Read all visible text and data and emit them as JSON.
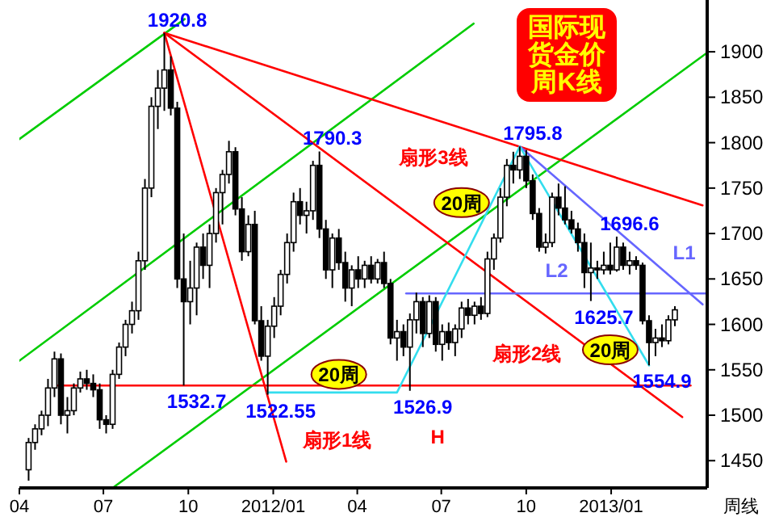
{
  "chart_data": {
    "type": "candlestick",
    "title": "国际现货金价周K线",
    "xlabel": "周线",
    "xlim": [
      "2011-04-01",
      "2013-04-15"
    ],
    "ylim": [
      1420,
      1957
    ],
    "yticks": [
      1450,
      1500,
      1550,
      1600,
      1650,
      1700,
      1750,
      1800,
      1850,
      1900
    ],
    "xticks": [
      {
        "value": "2011-04-01",
        "label": "04"
      },
      {
        "value": "2011-07-01",
        "label": "07"
      },
      {
        "value": "2011-10-01",
        "label": "10"
      },
      {
        "value": "2012-01-01",
        "label": "2012/01"
      },
      {
        "value": "2012-04-01",
        "label": "04"
      },
      {
        "value": "2012-07-01",
        "label": "07"
      },
      {
        "value": "2012-10-01",
        "label": "10"
      },
      {
        "value": "2013-01-01",
        "label": "2013/01"
      }
    ],
    "x": [
      "2011-04-11",
      "2011-04-18",
      "2011-04-25",
      "2011-05-02",
      "2011-05-09",
      "2011-05-16",
      "2011-05-23",
      "2011-05-30",
      "2011-06-06",
      "2011-06-13",
      "2011-06-20",
      "2011-06-27",
      "2011-07-04",
      "2011-07-11",
      "2011-07-18",
      "2011-07-25",
      "2011-08-01",
      "2011-08-08",
      "2011-08-15",
      "2011-08-22",
      "2011-08-29",
      "2011-09-05",
      "2011-09-12",
      "2011-09-19",
      "2011-09-26",
      "2011-10-03",
      "2011-10-10",
      "2011-10-17",
      "2011-10-24",
      "2011-10-31",
      "2011-11-07",
      "2011-11-14",
      "2011-11-21",
      "2011-11-28",
      "2011-12-05",
      "2011-12-12",
      "2011-12-19",
      "2011-12-26",
      "2012-01-02",
      "2012-01-09",
      "2012-01-16",
      "2012-01-23",
      "2012-01-30",
      "2012-02-06",
      "2012-02-13",
      "2012-02-20",
      "2012-02-27",
      "2012-03-05",
      "2012-03-12",
      "2012-03-19",
      "2012-03-26",
      "2012-04-02",
      "2012-04-09",
      "2012-04-16",
      "2012-04-23",
      "2012-04-30",
      "2012-05-07",
      "2012-05-14",
      "2012-05-21",
      "2012-05-28",
      "2012-06-04",
      "2012-06-11",
      "2012-06-18",
      "2012-06-25",
      "2012-07-02",
      "2012-07-09",
      "2012-07-16",
      "2012-07-23",
      "2012-07-30",
      "2012-08-06",
      "2012-08-13",
      "2012-08-20",
      "2012-08-27",
      "2012-09-03",
      "2012-09-10",
      "2012-09-17",
      "2012-09-24",
      "2012-10-01",
      "2012-10-08",
      "2012-10-15",
      "2012-10-22",
      "2012-10-29",
      "2012-11-05",
      "2012-11-12",
      "2012-11-19",
      "2012-11-26",
      "2012-12-03",
      "2012-12-10",
      "2012-12-17",
      "2012-12-24",
      "2012-12-31",
      "2013-01-07",
      "2013-01-14",
      "2013-01-21",
      "2013-01-28",
      "2013-02-04",
      "2013-02-11",
      "2013-02-18",
      "2013-02-25",
      "2013-03-04",
      "2013-03-11"
    ],
    "ohlc": [
      [
        1440,
        1475,
        1428,
        1470
      ],
      [
        1470,
        1490,
        1462,
        1485
      ],
      [
        1485,
        1505,
        1478,
        1500
      ],
      [
        1500,
        1540,
        1488,
        1530
      ],
      [
        1530,
        1570,
        1520,
        1562
      ],
      [
        1562,
        1568,
        1490,
        1500
      ],
      [
        1500,
        1520,
        1480,
        1505
      ],
      [
        1505,
        1535,
        1500,
        1530
      ],
      [
        1530,
        1548,
        1525,
        1540
      ],
      [
        1540,
        1550,
        1528,
        1535
      ],
      [
        1535,
        1545,
        1520,
        1528
      ],
      [
        1528,
        1535,
        1485,
        1495
      ],
      [
        1495,
        1500,
        1480,
        1490
      ],
      [
        1490,
        1550,
        1485,
        1545
      ],
      [
        1545,
        1580,
        1540,
        1575
      ],
      [
        1575,
        1605,
        1565,
        1600
      ],
      [
        1600,
        1625,
        1590,
        1615
      ],
      [
        1615,
        1680,
        1605,
        1670
      ],
      [
        1670,
        1760,
        1660,
        1750
      ],
      [
        1750,
        1850,
        1740,
        1840
      ],
      [
        1840,
        1880,
        1815,
        1860
      ],
      [
        1860,
        1920.8,
        1835,
        1880
      ],
      [
        1880,
        1895,
        1830,
        1838
      ],
      [
        1838,
        1845,
        1640,
        1650
      ],
      [
        1650,
        1700,
        1532.7,
        1625
      ],
      [
        1625,
        1670,
        1600,
        1640
      ],
      [
        1640,
        1690,
        1610,
        1685
      ],
      [
        1685,
        1700,
        1650,
        1665
      ],
      [
        1665,
        1710,
        1640,
        1700
      ],
      [
        1700,
        1750,
        1690,
        1745
      ],
      [
        1745,
        1770,
        1710,
        1765
      ],
      [
        1765,
        1802,
        1755,
        1790
      ],
      [
        1790,
        1795,
        1720,
        1727
      ],
      [
        1727,
        1740,
        1670,
        1680
      ],
      [
        1680,
        1720,
        1675,
        1710
      ],
      [
        1710,
        1725,
        1600,
        1604
      ],
      [
        1604,
        1620,
        1560,
        1565
      ],
      [
        1565,
        1605,
        1522.55,
        1598
      ],
      [
        1598,
        1630,
        1585,
        1620
      ],
      [
        1620,
        1660,
        1610,
        1655
      ],
      [
        1655,
        1700,
        1645,
        1690
      ],
      [
        1690,
        1745,
        1680,
        1735
      ],
      [
        1735,
        1750,
        1710,
        1720
      ],
      [
        1720,
        1735,
        1700,
        1725
      ],
      [
        1725,
        1780,
        1715,
        1775
      ],
      [
        1775,
        1790.3,
        1695,
        1705
      ],
      [
        1705,
        1715,
        1650,
        1660
      ],
      [
        1660,
        1700,
        1640,
        1695
      ],
      [
        1695,
        1705,
        1660,
        1668
      ],
      [
        1668,
        1680,
        1625,
        1640
      ],
      [
        1640,
        1665,
        1620,
        1660
      ],
      [
        1660,
        1675,
        1640,
        1650
      ],
      [
        1650,
        1670,
        1640,
        1665
      ],
      [
        1665,
        1675,
        1645,
        1650
      ],
      [
        1650,
        1672,
        1645,
        1668
      ],
      [
        1668,
        1680,
        1640,
        1645
      ],
      [
        1645,
        1650,
        1578,
        1585
      ],
      [
        1585,
        1605,
        1560,
        1592
      ],
      [
        1592,
        1600,
        1565,
        1575
      ],
      [
        1575,
        1612,
        1526.9,
        1605
      ],
      [
        1605,
        1635,
        1590,
        1625
      ],
      [
        1625,
        1630,
        1575,
        1590
      ],
      [
        1590,
        1632,
        1585,
        1625
      ],
      [
        1625,
        1630,
        1570,
        1578
      ],
      [
        1578,
        1600,
        1560,
        1592
      ],
      [
        1592,
        1602,
        1572,
        1580
      ],
      [
        1580,
        1600,
        1565,
        1595
      ],
      [
        1595,
        1625,
        1585,
        1618
      ],
      [
        1618,
        1628,
        1600,
        1610
      ],
      [
        1610,
        1625,
        1600,
        1620
      ],
      [
        1620,
        1630,
        1605,
        1612
      ],
      [
        1612,
        1680,
        1608,
        1672
      ],
      [
        1672,
        1700,
        1660,
        1695
      ],
      [
        1695,
        1750,
        1690,
        1740
      ],
      [
        1740,
        1782,
        1730,
        1775
      ],
      [
        1775,
        1790,
        1755,
        1770
      ],
      [
        1770,
        1795.8,
        1760,
        1785
      ],
      [
        1785,
        1792,
        1750,
        1758
      ],
      [
        1758,
        1765,
        1715,
        1722
      ],
      [
        1722,
        1728,
        1680,
        1685
      ],
      [
        1685,
        1700,
        1678,
        1690
      ],
      [
        1690,
        1745,
        1685,
        1740
      ],
      [
        1740,
        1755,
        1720,
        1728
      ],
      [
        1728,
        1752,
        1710,
        1715
      ],
      [
        1715,
        1725,
        1700,
        1705
      ],
      [
        1705,
        1712,
        1680,
        1690
      ],
      [
        1690,
        1700,
        1640,
        1657
      ],
      [
        1657,
        1690,
        1625.7,
        1662
      ],
      [
        1662,
        1670,
        1650,
        1660
      ],
      [
        1660,
        1680,
        1655,
        1665
      ],
      [
        1665,
        1690,
        1655,
        1660
      ],
      [
        1660,
        1696.6,
        1658,
        1685
      ],
      [
        1685,
        1690,
        1660,
        1665
      ],
      [
        1665,
        1680,
        1655,
        1670
      ],
      [
        1670,
        1675,
        1660,
        1665
      ],
      [
        1665,
        1668,
        1600,
        1604
      ],
      [
        1604,
        1610,
        1554.9,
        1580
      ],
      [
        1580,
        1595,
        1565,
        1585
      ],
      [
        1585,
        1600,
        1575,
        1582
      ],
      [
        1582,
        1610,
        1578,
        1605
      ],
      [
        1605,
        1620,
        1598,
        1616
      ]
    ],
    "series": [
      {
        "type": "line",
        "color": "#00cc00",
        "x": [
          "2011-04-01",
          "2011-09-27"
        ],
        "values": [
          1804,
          1936
        ]
      },
      {
        "type": "line",
        "color": "#00cc00",
        "x": [
          "2011-04-01",
          "2012-08-05"
        ],
        "values": [
          1560,
          1931
        ]
      },
      {
        "type": "line",
        "color": "#00cc00",
        "x": [
          "2011-07-11",
          "2013-04-15"
        ],
        "values": [
          1420,
          1899
        ]
      },
      {
        "type": "line",
        "color": "#ff0000",
        "name": "扇形3线",
        "x": [
          "2011-09-05",
          "2013-04-10"
        ],
        "values": [
          1920.8,
          1731
        ]
      },
      {
        "type": "line",
        "color": "#ff0000",
        "name": "扇形2线",
        "x": [
          "2011-09-05",
          "2013-03-19"
        ],
        "values": [
          1920.8,
          1498
        ]
      },
      {
        "type": "line",
        "color": "#ff0000",
        "name": "扇形1线",
        "x": [
          "2011-09-05",
          "2012-01-15"
        ],
        "values": [
          1920.8,
          1449
        ]
      },
      {
        "type": "line",
        "color": "#ff0000",
        "name": "H",
        "x": [
          "2011-05-13",
          "2013-03-28"
        ],
        "values": [
          1532.7,
          1532.7
        ]
      },
      {
        "type": "line",
        "color": "#6666ff",
        "name": "L2",
        "x": [
          "2012-05-24",
          "2013-04-15"
        ],
        "values": [
          1634,
          1634
        ]
      },
      {
        "type": "line",
        "color": "#6666ff",
        "name": "L1",
        "x": [
          "2012-09-24",
          "2013-04-10"
        ],
        "values": [
          1795.8,
          1622
        ]
      },
      {
        "type": "line",
        "color": "#33ddee",
        "x": [
          "2011-12-26",
          "2012-05-14",
          "2012-09-24",
          "2013-02-11"
        ],
        "values": [
          1525,
          1525,
          1795.8,
          1554.9
        ]
      }
    ],
    "annotations": [
      {
        "text": "1920.8",
        "x": "2011-09-05",
        "y": 1920.8
      },
      {
        "text": "1532.7",
        "x": "2011-09-26",
        "y": 1532.7
      },
      {
        "text": "1522.55",
        "x": "2011-12-26",
        "y": 1522.55
      },
      {
        "text": "1790.3",
        "x": "2012-02-20",
        "y": 1790.3
      },
      {
        "text": "1526.9",
        "x": "2012-05-28",
        "y": 1526.9
      },
      {
        "text": "1795.8",
        "x": "2012-09-24",
        "y": 1795.8
      },
      {
        "text": "1696.6",
        "x": "2013-01-07",
        "y": 1696.6
      },
      {
        "text": "1625.7",
        "x": "2012-12-10",
        "y": 1625.7
      },
      {
        "text": "1554.9",
        "x": "2013-02-11",
        "y": 1554.9
      },
      {
        "text": "20周",
        "x": "2012-03-12",
        "y": 1545
      },
      {
        "text": "20周",
        "x": "2012-07-23",
        "y": 1734
      },
      {
        "text": "20周",
        "x": "2012-12-31",
        "y": 1572
      }
    ]
  }
}
